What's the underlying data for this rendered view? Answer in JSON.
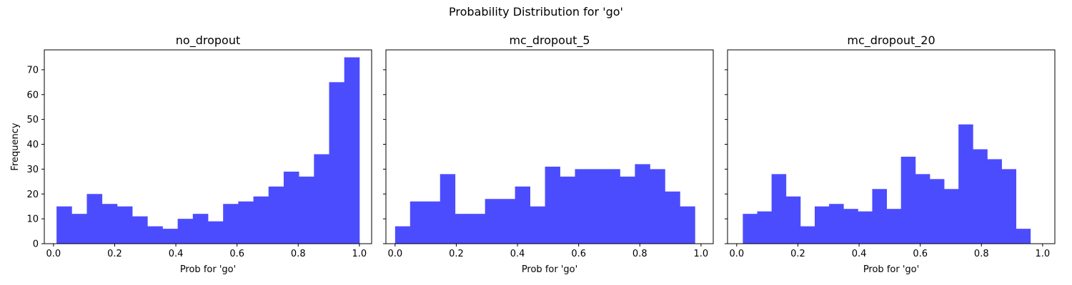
{
  "figure": {
    "suptitle": "Probability Distribution for 'go'",
    "bar_color": "#4c4cff"
  },
  "chart_data": [
    {
      "type": "bar",
      "title": "no_dropout",
      "xlabel": "Prob for 'go'",
      "ylabel": "Frequency",
      "xlim": [
        -0.03,
        1.04
      ],
      "ylim": [
        0,
        78
      ],
      "xticks": [
        0.0,
        0.2,
        0.4,
        0.6,
        0.8,
        1.0
      ],
      "xtick_labels": [
        "0.0",
        "0.2",
        "0.4",
        "0.6",
        "0.8",
        "1.0"
      ],
      "yticks": [
        0,
        10,
        20,
        30,
        40,
        50,
        60,
        70
      ],
      "ytick_labels": [
        "0",
        "10",
        "20",
        "30",
        "40",
        "50",
        "60",
        "70"
      ],
      "bin_edges": [
        0.01,
        0.0595,
        0.109,
        0.1585,
        0.208,
        0.2575,
        0.307,
        0.3565,
        0.406,
        0.4555,
        0.505,
        0.5545,
        0.604,
        0.6535,
        0.703,
        0.7525,
        0.802,
        0.8515,
        0.901,
        0.9505,
        1.0
      ],
      "values": [
        15,
        12,
        20,
        16,
        15,
        11,
        7,
        6,
        10,
        12,
        9,
        16,
        17,
        19,
        23,
        29,
        27,
        36,
        65,
        75
      ]
    },
    {
      "type": "bar",
      "title": "mc_dropout_5",
      "xlabel": "Prob for 'go'",
      "ylabel": "",
      "xlim": [
        -0.03,
        1.04
      ],
      "ylim": [
        0,
        78
      ],
      "xticks": [
        0.0,
        0.2,
        0.4,
        0.6,
        0.8,
        1.0
      ],
      "xtick_labels": [
        "0.0",
        "0.2",
        "0.4",
        "0.6",
        "0.8",
        "1.0"
      ],
      "yticks": [
        0,
        10,
        20,
        30,
        40,
        50,
        60,
        70
      ],
      "ytick_labels": [],
      "bin_edges": [
        0.0,
        0.049,
        0.098,
        0.147,
        0.196,
        0.245,
        0.294,
        0.343,
        0.392,
        0.441,
        0.49,
        0.539,
        0.588,
        0.637,
        0.686,
        0.735,
        0.784,
        0.833,
        0.882,
        0.931,
        0.98
      ],
      "values": [
        7,
        17,
        17,
        28,
        12,
        12,
        18,
        18,
        23,
        15,
        31,
        27,
        30,
        30,
        30,
        27,
        32,
        30,
        21,
        15
      ]
    },
    {
      "type": "bar",
      "title": "mc_dropout_20",
      "xlabel": "Prob for 'go'",
      "ylabel": "",
      "xlim": [
        -0.03,
        1.04
      ],
      "ylim": [
        0,
        78
      ],
      "xticks": [
        0.0,
        0.2,
        0.4,
        0.6,
        0.8,
        1.0
      ],
      "xtick_labels": [
        "0.0",
        "0.2",
        "0.4",
        "0.6",
        "0.8",
        "1.0"
      ],
      "yticks": [
        0,
        10,
        20,
        30,
        40,
        50,
        60,
        70
      ],
      "ytick_labels": [],
      "bin_edges": [
        0.02,
        0.067,
        0.114,
        0.161,
        0.208,
        0.255,
        0.302,
        0.349,
        0.396,
        0.443,
        0.49,
        0.537,
        0.584,
        0.631,
        0.678,
        0.725,
        0.772,
        0.819,
        0.866,
        0.913,
        0.96
      ],
      "values": [
        12,
        13,
        28,
        19,
        7,
        15,
        16,
        14,
        13,
        22,
        14,
        35,
        28,
        26,
        22,
        48,
        38,
        34,
        30,
        6
      ]
    }
  ]
}
